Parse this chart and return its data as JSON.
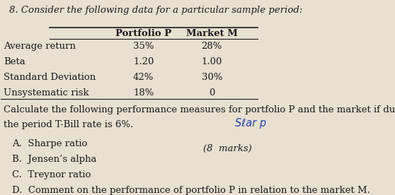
{
  "title": "8. Consider the following data for a particular sample period:",
  "col_headers": [
    "",
    "Portfolio P",
    "Market M"
  ],
  "rows": [
    [
      "Average return",
      "35%",
      "28%"
    ],
    [
      "Beta",
      "1.20",
      "1.00"
    ],
    [
      "Standard Deviation",
      "42%",
      "30%"
    ],
    [
      "Unsystematic risk",
      "18%",
      "0"
    ]
  ],
  "paragraph": "Calculate the following performance measures for portfolio P and the market if during\nthe period T-Bill rate is 6%.",
  "handwritten": "Sℓar p",
  "items": [
    "A.  Sharpe ratio",
    "B.  Jensen’s alpha",
    "C.  Treynor ratio",
    "D.  Comment on the performance of portfolio P in relation to the market M."
  ],
  "footer": "(8  marks)",
  "bg_color": "#e8e0d0",
  "text_color": "#1a1a1a",
  "font_size": 9.5
}
